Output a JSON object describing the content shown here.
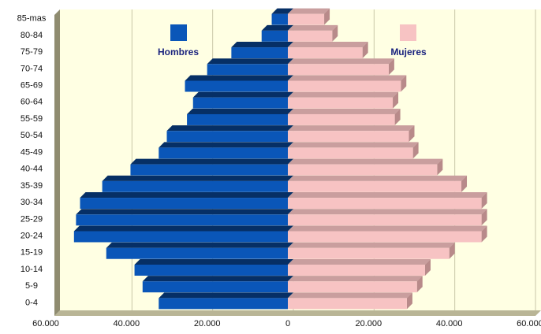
{
  "chart_data": {
    "type": "bar",
    "orientation": "horizontal",
    "layout": "population-pyramid",
    "categories": [
      "0-4",
      "5-9",
      "10-14",
      "15-19",
      "20-24",
      "25-29",
      "30-34",
      "35-39",
      "40-44",
      "45-49",
      "50-54",
      "55-59",
      "60-64",
      "65-69",
      "70-74",
      "75-79",
      "80-84",
      "85-mas"
    ],
    "series": [
      {
        "name": "Hombres",
        "side": "left",
        "color": "#0a56b8",
        "values": [
          32000,
          36000,
          38000,
          45000,
          53000,
          52500,
          51500,
          46000,
          39000,
          32000,
          30000,
          25000,
          23500,
          25500,
          20000,
          14000,
          6500,
          4000
        ]
      },
      {
        "name": "Mujeres",
        "side": "right",
        "color": "#f7c3c3",
        "values": [
          29500,
          32000,
          34000,
          40000,
          48000,
          48000,
          48000,
          43000,
          37000,
          31000,
          30000,
          26500,
          26000,
          28000,
          25000,
          18500,
          11000,
          9000
        ]
      }
    ],
    "xlim": [
      -60000,
      60000
    ],
    "xticks": [
      "60.000",
      "40.000",
      "20.000",
      "0",
      "20.000",
      "40.000",
      "60.000"
    ],
    "xtick_values": [
      -60000,
      -40000,
      -20000,
      0,
      20000,
      40000,
      60000
    ],
    "legend": {
      "placement": "top-inside",
      "left": "Hombres",
      "right": "Mujeres"
    },
    "background_color": "#ffffe3",
    "grid": true,
    "style": "3d-bars"
  }
}
